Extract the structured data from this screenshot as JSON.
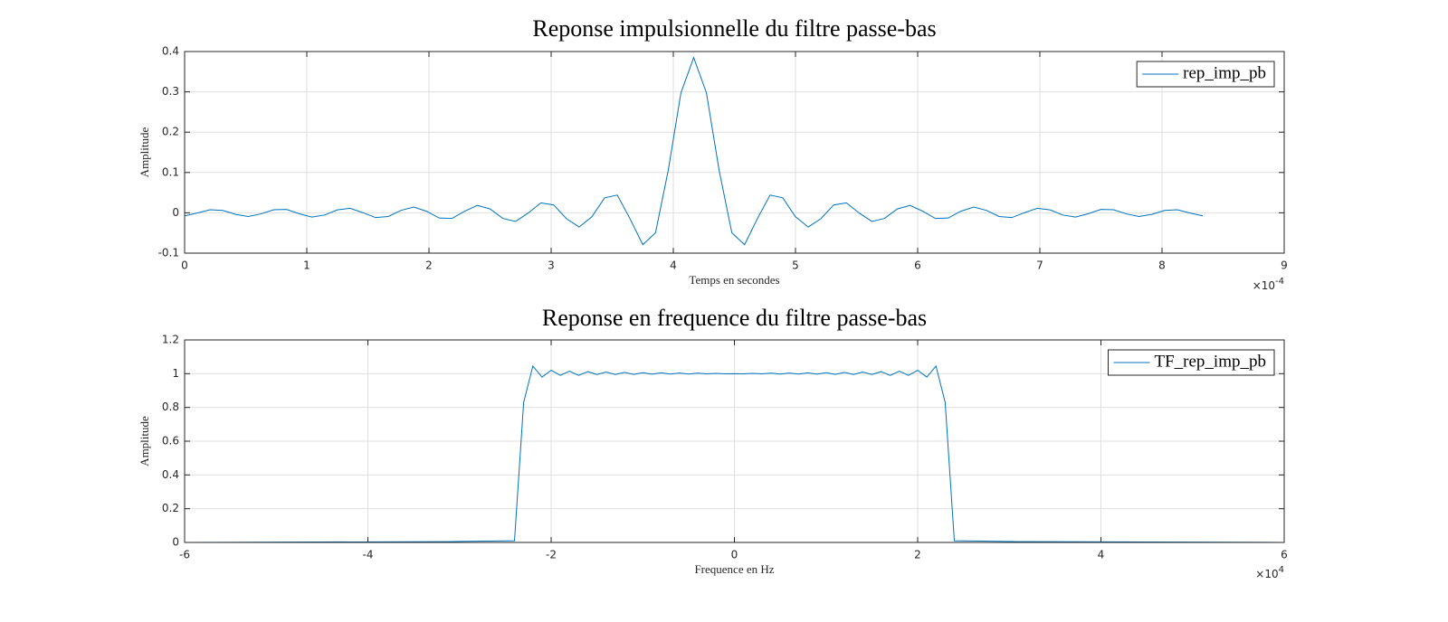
{
  "chart_data": [
    {
      "type": "line",
      "title": "Reponse impulsionnelle du filtre passe-bas",
      "xlabel": "Temps en secondes",
      "ylabel": "Amplitude",
      "x_multiplier": {
        "base": "×10",
        "exponent": "-4"
      },
      "x": [
        0,
        0.1042,
        0.2083,
        0.3125,
        0.4167,
        0.5208,
        0.625,
        0.7292,
        0.8333,
        0.9375,
        1.0417,
        1.1458,
        1.25,
        1.3542,
        1.4583,
        1.5625,
        1.6667,
        1.7708,
        1.875,
        1.9792,
        2.0833,
        2.1875,
        2.2917,
        2.3958,
        2.5,
        2.6042,
        2.7083,
        2.8125,
        2.9167,
        3.0208,
        3.125,
        3.2292,
        3.3333,
        3.4375,
        3.5417,
        3.6458,
        3.75,
        3.8542,
        3.9583,
        4.0625,
        4.1667,
        4.2708,
        4.375,
        4.4792,
        4.5833,
        4.6875,
        4.7917,
        4.8958,
        5.0,
        5.1042,
        5.2083,
        5.3125,
        5.4167,
        5.5208,
        5.625,
        5.7292,
        5.8333,
        5.9375,
        6.0417,
        6.1458,
        6.25,
        6.3542,
        6.4583,
        6.5625,
        6.6667,
        6.7708,
        6.875,
        6.9792,
        7.0833,
        7.1875,
        7.2917,
        7.3958,
        7.5,
        7.6042,
        7.7083,
        7.8125,
        7.9167,
        8.0208,
        8.125,
        8.2292,
        8.3333
      ],
      "series": [
        {
          "name": "rep_imp_pb",
          "color": "#0072bd",
          "values": [
            -0.0076,
            -0.0004,
            0.0077,
            0.006,
            -0.0038,
            -0.0091,
            -0.0026,
            0.0077,
            0.0084,
            -0.0021,
            -0.0105,
            -0.0054,
            0.0073,
            0.0112,
            0.0004,
            -0.0118,
            -0.0091,
            0.0061,
            0.0144,
            0.004,
            -0.0129,
            -0.014,
            0.0039,
            0.0185,
            0.0096,
            -0.0138,
            -0.0214,
            -0.0004,
            0.0247,
            0.0195,
            -0.0145,
            -0.0352,
            -0.0099,
            0.0372,
            0.0439,
            -0.0149,
            -0.079,
            -0.0496,
            0.1052,
            0.2977,
            0.385,
            0.2977,
            0.1052,
            -0.0496,
            -0.079,
            -0.0149,
            0.0439,
            0.0372,
            -0.0099,
            -0.0352,
            -0.0145,
            0.0195,
            0.0247,
            -0.0004,
            -0.0214,
            -0.0138,
            0.0096,
            0.0185,
            0.0039,
            -0.014,
            -0.0129,
            0.004,
            0.0144,
            0.0061,
            -0.0091,
            -0.0118,
            0.0004,
            0.0112,
            0.0073,
            -0.0054,
            -0.0105,
            -0.0021,
            0.0084,
            0.0077,
            -0.0026,
            -0.0091,
            -0.0038,
            0.006,
            0.0077,
            -0.0004,
            -0.0076
          ]
        }
      ],
      "xlim": [
        0,
        9
      ],
      "xticks": [
        0,
        1,
        2,
        3,
        4,
        5,
        6,
        7,
        8,
        9
      ],
      "ylim": [
        -0.1,
        0.4
      ],
      "yticks": [
        -0.1,
        0,
        0.1,
        0.2,
        0.3,
        0.4
      ],
      "grid": true,
      "legend_position": "northeast"
    },
    {
      "type": "line",
      "title": "Reponse en frequence du filtre passe-bas",
      "xlabel": "Frequence en Hz",
      "ylabel": "Amplitude",
      "x_multiplier": {
        "base": "×10",
        "exponent": "4"
      },
      "x": [
        -6,
        -3.1,
        -2.7,
        -2.4,
        -2.3,
        -2.2,
        -2.1,
        -2.0,
        -1.9,
        -1.8,
        -1.7,
        -1.6,
        -1.5,
        -1.4,
        -1.3,
        -1.2,
        -1.1,
        -1.0,
        -0.9,
        -0.8,
        -0.7,
        -0.6,
        -0.5,
        -0.4,
        -0.3,
        -0.2,
        -0.1,
        0,
        0.1,
        0.2,
        0.3,
        0.4,
        0.5,
        0.6,
        0.7,
        0.8,
        0.9,
        1.0,
        1.1,
        1.2,
        1.3,
        1.4,
        1.5,
        1.6,
        1.7,
        1.8,
        1.9,
        2.0,
        2.1,
        2.2,
        2.3,
        2.4,
        2.7,
        3.1,
        6
      ],
      "series": [
        {
          "name": "TF_rep_imp_pb",
          "color": "#0072bd",
          "values": [
            0,
            0.005,
            0.008,
            0.01,
            0.83,
            1.045,
            0.98,
            1.02,
            0.99,
            1.015,
            0.99,
            1.012,
            0.995,
            1.01,
            0.995,
            1.008,
            0.996,
            1.006,
            0.997,
            1.005,
            0.998,
            1.004,
            0.998,
            1.003,
            0.999,
            1.002,
            0.999,
            1.0,
            0.999,
            1.002,
            0.999,
            1.003,
            0.998,
            1.004,
            0.998,
            1.005,
            0.997,
            1.006,
            0.996,
            1.008,
            0.995,
            1.01,
            0.995,
            1.012,
            0.99,
            1.015,
            0.99,
            1.02,
            0.98,
            1.045,
            0.83,
            0.01,
            0.008,
            0.005,
            0
          ]
        }
      ],
      "xlim": [
        -6,
        6
      ],
      "xticks": [
        -6,
        -4,
        -2,
        0,
        2,
        4,
        6
      ],
      "ylim": [
        0,
        1.2
      ],
      "yticks": [
        0,
        0.2,
        0.4,
        0.6,
        0.8,
        1,
        1.2
      ],
      "grid": true,
      "legend_position": "northeast"
    }
  ]
}
